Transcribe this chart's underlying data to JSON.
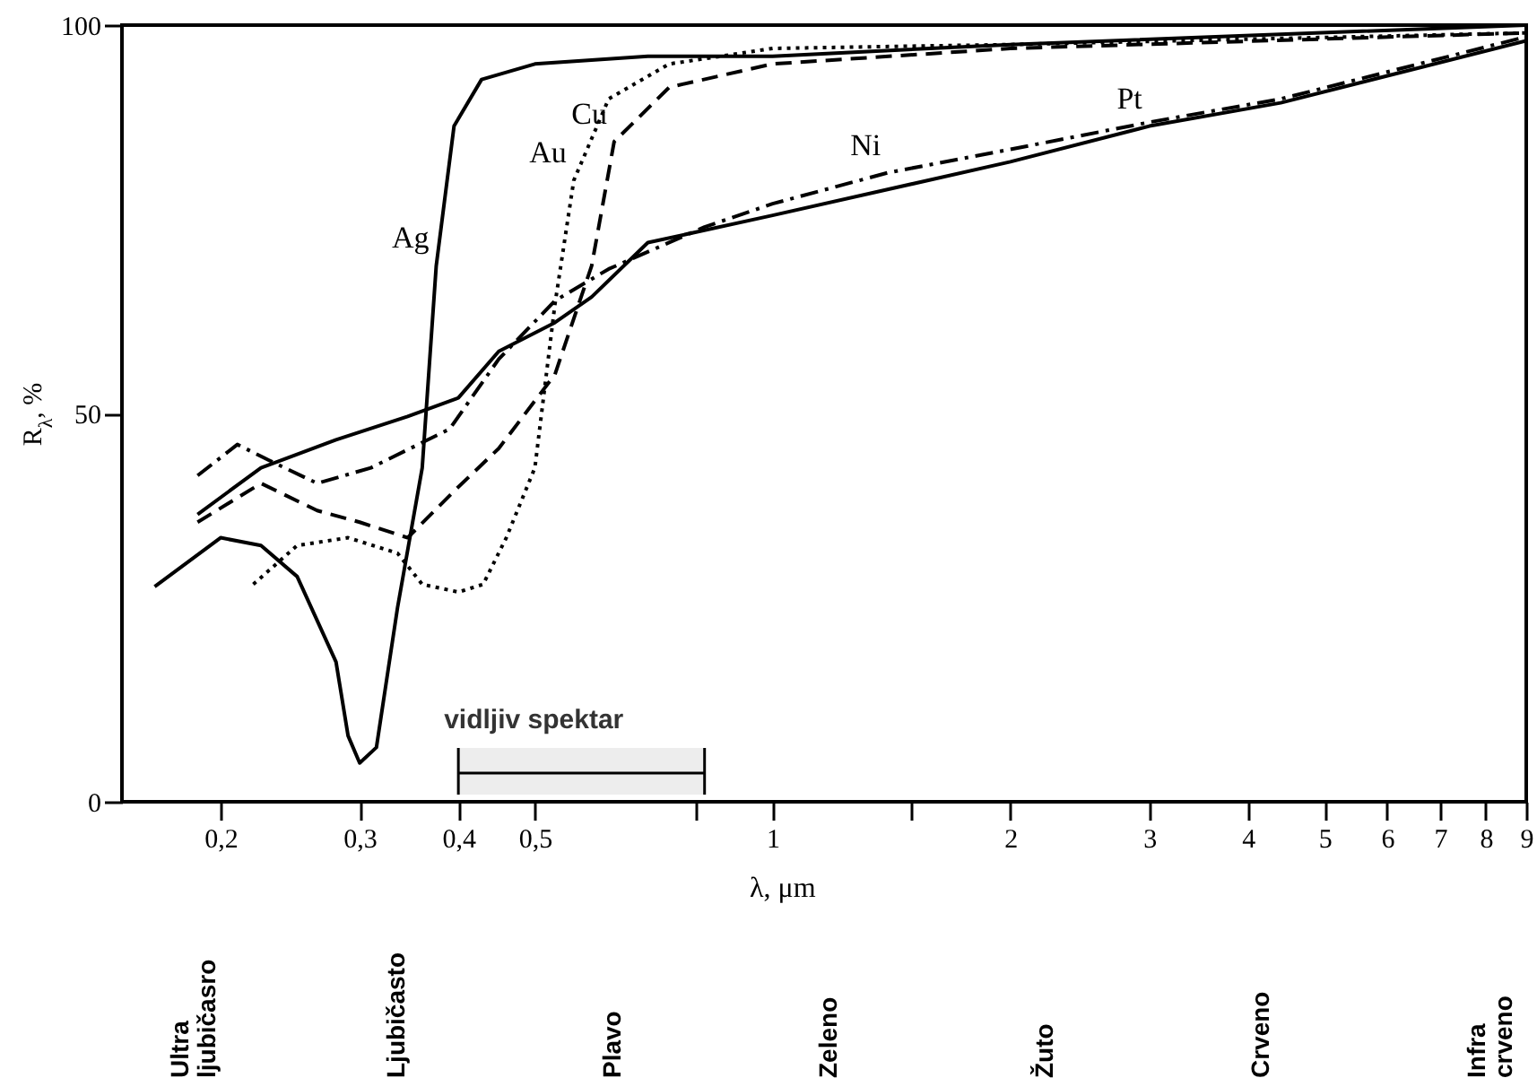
{
  "chart_data": {
    "type": "line",
    "xlabel": "λ, μm",
    "ylabel": "R$_{λ}$, %",
    "log": "x",
    "xlim": [
      0.15,
      9
    ],
    "ylim": [
      0,
      100
    ],
    "xticks": [
      {
        "value": 0.2,
        "label": "0,2"
      },
      {
        "value": 0.3,
        "label": "0,3"
      },
      {
        "value": 0.4,
        "label": "0,4"
      },
      {
        "value": 0.5,
        "label": "0,5"
      },
      {
        "value": 0.8,
        "label": null
      },
      1,
      {
        "value": 1.5,
        "label": null
      },
      2,
      3,
      4,
      5,
      6,
      7,
      8,
      9
    ],
    "yticks": [
      0,
      50,
      100
    ],
    "grid": false,
    "series": [
      {
        "color": "#000000",
        "line_style": "solid",
        "x": [
          0.165,
          0.2,
          0.225,
          0.25,
          0.28,
          0.29,
          0.3,
          0.315,
          0.335,
          0.36,
          0.375,
          0.395,
          0.428,
          0.5,
          0.695,
          1,
          2,
          9
        ],
        "values": [
          27.7,
          34,
          33,
          29,
          18,
          8.5,
          5,
          7,
          25,
          43,
          69,
          87,
          93,
          95,
          96,
          96,
          97.5,
          100
        ]
      },
      {
        "color": "#000000",
        "line_style": "dotted",
        "x": [
          0.22,
          0.25,
          0.29,
          0.335,
          0.36,
          0.4,
          0.43,
          0.46,
          0.5,
          0.53,
          0.56,
          0.62,
          0.74,
          1,
          2,
          9
        ],
        "values": [
          28,
          33,
          34,
          32,
          28,
          27,
          28,
          34,
          43,
          64,
          80,
          90.5,
          95,
          97,
          97.5,
          99
        ]
      },
      {
        "color": "#000000",
        "line_style": "dashed",
        "x": [
          0.187,
          0.225,
          0.265,
          0.3,
          0.345,
          0.395,
          0.45,
          0.53,
          0.59,
          0.63,
          0.74,
          1,
          2,
          9
        ],
        "values": [
          36,
          41,
          37.5,
          36,
          34,
          40,
          45.5,
          55,
          69,
          85,
          92,
          95,
          97,
          99
        ]
      },
      {
        "color": "#000000",
        "line_style": "dashdot",
        "x": [
          0.187,
          0.21,
          0.23,
          0.265,
          0.31,
          0.39,
          0.45,
          0.53,
          0.62,
          0.82,
          1,
          1.4,
          2,
          3,
          4.4,
          9
        ],
        "values": [
          42,
          46,
          44,
          41,
          43,
          48,
          57,
          64.5,
          68.6,
          74,
          77,
          81,
          84,
          87.5,
          90.5,
          98.5
        ]
      },
      {
        "color": "#000000",
        "line_style": "solid",
        "x": [
          0.187,
          0.225,
          0.28,
          0.345,
          0.4,
          0.45,
          0.53,
          0.59,
          0.695,
          1,
          2,
          3,
          4.4,
          9
        ],
        "values": [
          37,
          43,
          46.6,
          49.6,
          52,
          58,
          61.7,
          65,
          72,
          75.5,
          82.4,
          87,
          90,
          98
        ]
      }
    ],
    "bands": [
      {
        "axis": "x",
        "from": 0.4,
        "to": 0.82,
        "label": "vidljiv spektar"
      }
    ],
    "annotations": [
      "Ultra ljubičasro",
      "Ljubičasto",
      "Plavo",
      "Zeleno",
      "Žuto",
      "Crveno",
      "Infra crveno",
      {
        "text": "Ag",
        "x": 0.375,
        "y": 69
      },
      {
        "text": "Au",
        "x": 0.56,
        "y": 80
      },
      {
        "text": "Cu",
        "x": 0.63,
        "y": 85
      },
      {
        "text": "Ni",
        "x": 1.4,
        "y": 81
      },
      {
        "text": "Pt",
        "x": 3,
        "y": 87
      }
    ]
  }
}
